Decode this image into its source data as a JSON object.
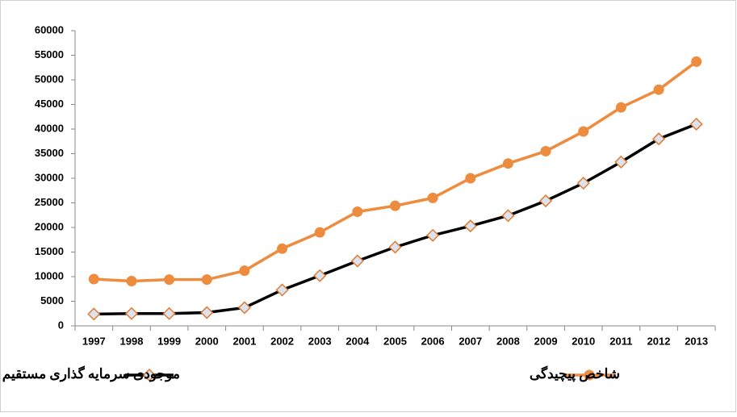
{
  "chart_data": {
    "type": "line",
    "categories": [
      "1997",
      "1998",
      "1999",
      "2000",
      "2001",
      "2002",
      "2003",
      "2004",
      "2005",
      "2006",
      "2007",
      "2008",
      "2009",
      "2010",
      "2011",
      "2012",
      "2013"
    ],
    "series": [
      {
        "name": "موجودی سرمایه گذاری مستقیم خارجی",
        "color": "#000000",
        "marker": "diamond",
        "marker_fill": "#dbe3f0",
        "marker_stroke": "#e07b2e",
        "values": [
          2400,
          2500,
          2500,
          2700,
          3700,
          7300,
          10200,
          13200,
          16000,
          18400,
          20300,
          22400,
          25400,
          29000,
          33300,
          38000,
          41000
        ]
      },
      {
        "name": "شاخص پیچیدگی",
        "color": "#ed8b3f",
        "marker": "circle",
        "marker_fill": "#ed8b3f",
        "marker_stroke": "#ed8b3f",
        "values": [
          9500,
          9100,
          9400,
          9400,
          11200,
          15700,
          19000,
          23200,
          24400,
          26000,
          30000,
          33000,
          35500,
          39500,
          44400,
          48000,
          53700
        ]
      }
    ],
    "ylim": [
      0,
      60000
    ],
    "yticks": [
      0,
      5000,
      10000,
      15000,
      20000,
      25000,
      30000,
      35000,
      40000,
      45000,
      50000,
      55000,
      60000
    ],
    "grid": false,
    "legend": "bottom"
  }
}
